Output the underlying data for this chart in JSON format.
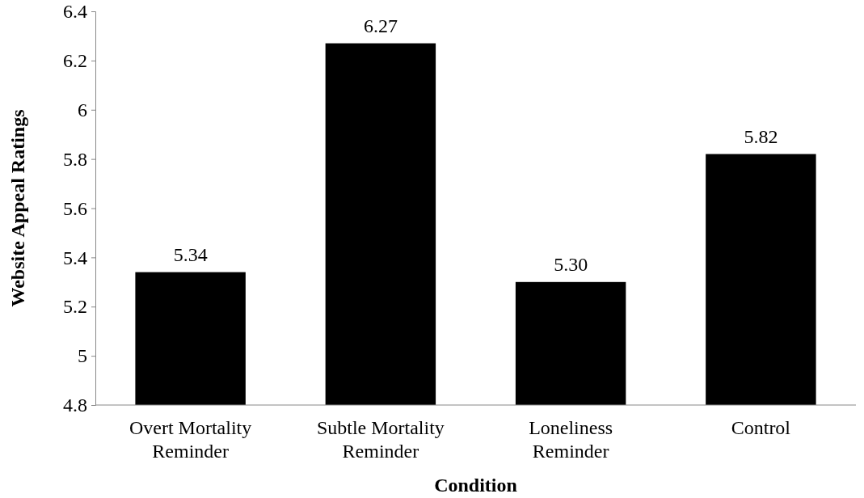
{
  "chart_data": {
    "type": "bar",
    "xlabel": "Condition",
    "ylabel": "Website Appeal Ratings",
    "categories": [
      "Overt Mortality Reminder",
      "Subtle Mortality Reminder",
      "Loneliness Reminder",
      "Control"
    ],
    "values": [
      5.34,
      6.27,
      5.3,
      5.82
    ],
    "value_labels": [
      "5.34",
      "6.27",
      "5.30",
      "5.82"
    ],
    "color": "#000000",
    "ylim": [
      4.8,
      6.4
    ],
    "yticks": [
      4.8,
      5,
      5.2,
      5.4,
      5.6,
      5.8,
      6,
      6.2,
      6.4
    ],
    "grid": false
  }
}
